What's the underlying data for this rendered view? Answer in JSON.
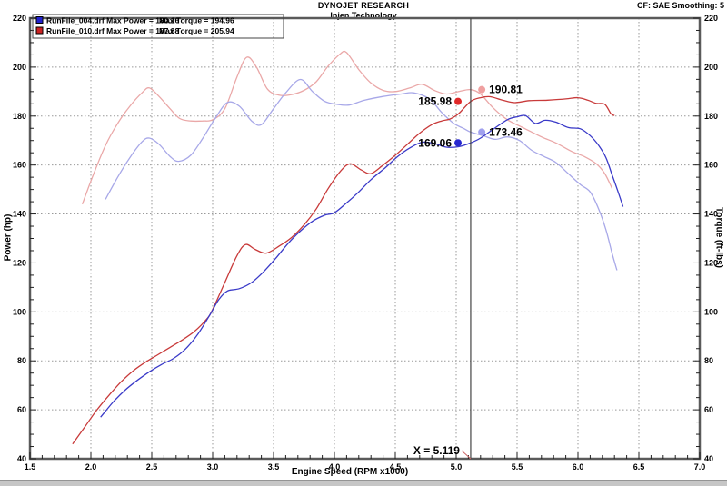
{
  "header": {
    "title": "DYNOJET RESEARCH",
    "subtitle": "Injen Technology",
    "correction": "CF: SAE  Smoothing: 5"
  },
  "legend": {
    "position": "top-left",
    "rows": [
      {
        "file": "RunFile_004.drf",
        "max_power": "Max Power = 180.16",
        "max_torque": "Max Torque = 194.96",
        "swatch_color": "#2222cc"
      },
      {
        "file": "RunFile_010.drf",
        "max_power": "Max Power = 187.88",
        "max_torque": "Max Torque = 205.94",
        "swatch_color": "#cc2222"
      }
    ]
  },
  "chart_data": {
    "type": "line",
    "title": "DYNOJET RESEARCH",
    "subtitle": "Injen Technology",
    "xlabel": "Engine Speed (RPM x1000)",
    "ylabel_left": "Power (hp)",
    "ylabel_right": "Torque (ft-lbs)",
    "x_range": [
      1.5,
      7.0
    ],
    "y_range": [
      40,
      220
    ],
    "x_major_step": 0.5,
    "x_minor_step": 0.1,
    "y_major_step": 20,
    "y_minor_step": 5,
    "grid_style": "dotted",
    "legend_position": "top-left",
    "cursor": {
      "x": 5.119,
      "label": "X = 5.119"
    },
    "series": [
      {
        "name": "RunFile_010.drf Torque",
        "unit": "ft-lbs",
        "max": 205.94,
        "color": "#eaa8a8",
        "points": [
          [
            1.93,
            144
          ],
          [
            2.02,
            156
          ],
          [
            2.12,
            168
          ],
          [
            2.22,
            177
          ],
          [
            2.32,
            184
          ],
          [
            2.42,
            189.5
          ],
          [
            2.48,
            191.5
          ],
          [
            2.56,
            188
          ],
          [
            2.65,
            183
          ],
          [
            2.73,
            179
          ],
          [
            2.82,
            178
          ],
          [
            2.92,
            178
          ],
          [
            3.0,
            178.5
          ],
          [
            3.1,
            183
          ],
          [
            3.2,
            196
          ],
          [
            3.28,
            204
          ],
          [
            3.36,
            200
          ],
          [
            3.45,
            191
          ],
          [
            3.55,
            188.5
          ],
          [
            3.65,
            188.8
          ],
          [
            3.75,
            190.5
          ],
          [
            3.85,
            194
          ],
          [
            3.95,
            200.5
          ],
          [
            4.05,
            205.5
          ],
          [
            4.1,
            205.94
          ],
          [
            4.2,
            199
          ],
          [
            4.3,
            193.5
          ],
          [
            4.4,
            190.5
          ],
          [
            4.5,
            190
          ],
          [
            4.62,
            191.5
          ],
          [
            4.72,
            193
          ],
          [
            4.82,
            190.5
          ],
          [
            4.92,
            189
          ],
          [
            5.02,
            190
          ],
          [
            5.119,
            190.81
          ],
          [
            5.2,
            189
          ],
          [
            5.3,
            183.5
          ],
          [
            5.42,
            178.5
          ],
          [
            5.56,
            175
          ],
          [
            5.7,
            171.5
          ],
          [
            5.82,
            169
          ],
          [
            5.95,
            165.5
          ],
          [
            6.05,
            163.5
          ],
          [
            6.15,
            160.5
          ],
          [
            6.22,
            156.5
          ],
          [
            6.28,
            150.5
          ]
        ]
      },
      {
        "name": "RunFile_004.drf Torque",
        "unit": "ft-lbs",
        "max": 194.96,
        "color": "#a8a8e8",
        "points": [
          [
            2.12,
            146
          ],
          [
            2.22,
            155
          ],
          [
            2.32,
            163
          ],
          [
            2.42,
            169.5
          ],
          [
            2.48,
            171
          ],
          [
            2.56,
            168.5
          ],
          [
            2.65,
            163.5
          ],
          [
            2.72,
            161.5
          ],
          [
            2.82,
            164
          ],
          [
            2.92,
            171
          ],
          [
            3.02,
            179
          ],
          [
            3.12,
            185.5
          ],
          [
            3.22,
            184
          ],
          [
            3.32,
            178
          ],
          [
            3.4,
            176.5
          ],
          [
            3.5,
            183
          ],
          [
            3.6,
            189.5
          ],
          [
            3.72,
            194.96
          ],
          [
            3.82,
            190
          ],
          [
            3.92,
            186
          ],
          [
            4.02,
            184.8
          ],
          [
            4.12,
            184.5
          ],
          [
            4.25,
            186.5
          ],
          [
            4.4,
            188
          ],
          [
            4.55,
            189
          ],
          [
            4.65,
            189.5
          ],
          [
            4.78,
            187
          ],
          [
            4.88,
            181.5
          ],
          [
            4.98,
            177
          ],
          [
            5.06,
            175
          ],
          [
            5.119,
            173.46
          ],
          [
            5.22,
            172
          ],
          [
            5.32,
            170.5
          ],
          [
            5.42,
            171.5
          ],
          [
            5.52,
            170
          ],
          [
            5.62,
            166
          ],
          [
            5.72,
            163.5
          ],
          [
            5.82,
            161
          ],
          [
            5.92,
            156.5
          ],
          [
            6.02,
            152
          ],
          [
            6.1,
            149
          ],
          [
            6.17,
            142
          ],
          [
            6.23,
            133.5
          ],
          [
            6.28,
            124
          ],
          [
            6.32,
            117
          ]
        ]
      },
      {
        "name": "RunFile_010.drf Power",
        "unit": "hp",
        "max": 187.88,
        "color": "#c83a3a",
        "points": [
          [
            1.85,
            46
          ],
          [
            1.95,
            53
          ],
          [
            2.05,
            60
          ],
          [
            2.15,
            66
          ],
          [
            2.25,
            71.5
          ],
          [
            2.35,
            76
          ],
          [
            2.45,
            79.5
          ],
          [
            2.55,
            82.5
          ],
          [
            2.65,
            85.5
          ],
          [
            2.75,
            88.5
          ],
          [
            2.85,
            92
          ],
          [
            2.95,
            97
          ],
          [
            3.0,
            101
          ],
          [
            3.1,
            112
          ],
          [
            3.2,
            123
          ],
          [
            3.27,
            127.5
          ],
          [
            3.35,
            125.5
          ],
          [
            3.44,
            124
          ],
          [
            3.55,
            127
          ],
          [
            3.65,
            130.5
          ],
          [
            3.75,
            135.5
          ],
          [
            3.85,
            142
          ],
          [
            3.95,
            150.5
          ],
          [
            4.05,
            157.5
          ],
          [
            4.13,
            160.5
          ],
          [
            4.22,
            158
          ],
          [
            4.3,
            156.5
          ],
          [
            4.4,
            160
          ],
          [
            4.5,
            164
          ],
          [
            4.6,
            168.5
          ],
          [
            4.7,
            173
          ],
          [
            4.8,
            176.5
          ],
          [
            4.88,
            178
          ],
          [
            4.95,
            178.8
          ],
          [
            5.02,
            181
          ],
          [
            5.119,
            185.98
          ],
          [
            5.2,
            187.5
          ],
          [
            5.28,
            187.88
          ],
          [
            5.38,
            186.5
          ],
          [
            5.48,
            185.5
          ],
          [
            5.6,
            186.3
          ],
          [
            5.75,
            186.5
          ],
          [
            5.9,
            187
          ],
          [
            6.0,
            187.5
          ],
          [
            6.08,
            186.5
          ],
          [
            6.15,
            185.2
          ],
          [
            6.22,
            184.8
          ],
          [
            6.27,
            181
          ],
          [
            6.3,
            180.2
          ]
        ]
      },
      {
        "name": "RunFile_004.drf Power",
        "unit": "hp",
        "max": 180.16,
        "color": "#3a3ac8",
        "points": [
          [
            2.08,
            57
          ],
          [
            2.18,
            63
          ],
          [
            2.28,
            68
          ],
          [
            2.38,
            72
          ],
          [
            2.48,
            75.5
          ],
          [
            2.58,
            78.5
          ],
          [
            2.68,
            81
          ],
          [
            2.78,
            85
          ],
          [
            2.88,
            91
          ],
          [
            2.98,
            99
          ],
          [
            3.05,
            105
          ],
          [
            3.12,
            108.5
          ],
          [
            3.22,
            109.5
          ],
          [
            3.32,
            112
          ],
          [
            3.42,
            116.5
          ],
          [
            3.52,
            122
          ],
          [
            3.62,
            128
          ],
          [
            3.72,
            133
          ],
          [
            3.82,
            137
          ],
          [
            3.92,
            139.5
          ],
          [
            4.0,
            140.5
          ],
          [
            4.1,
            144.5
          ],
          [
            4.2,
            149
          ],
          [
            4.3,
            154
          ],
          [
            4.42,
            159
          ],
          [
            4.52,
            163.5
          ],
          [
            4.62,
            167
          ],
          [
            4.72,
            169.3
          ],
          [
            4.82,
            168.8
          ],
          [
            4.92,
            167.3
          ],
          [
            5.02,
            167.5
          ],
          [
            5.119,
            169.06
          ],
          [
            5.2,
            171
          ],
          [
            5.3,
            174.5
          ],
          [
            5.42,
            178.5
          ],
          [
            5.5,
            179.7
          ],
          [
            5.57,
            180.16
          ],
          [
            5.65,
            177
          ],
          [
            5.73,
            178.3
          ],
          [
            5.82,
            177.5
          ],
          [
            5.92,
            175.3
          ],
          [
            6.02,
            174.8
          ],
          [
            6.1,
            172
          ],
          [
            6.17,
            168
          ],
          [
            6.23,
            163
          ],
          [
            6.28,
            156
          ],
          [
            6.33,
            149
          ],
          [
            6.37,
            143
          ]
        ]
      }
    ],
    "callouts": [
      {
        "value": "185.98",
        "dot_color": "#e02828",
        "dot_x": 5.015,
        "dot_y": 185.98,
        "text_side": "left"
      },
      {
        "value": "190.81",
        "dot_color": "#efa0a0",
        "dot_x": 5.21,
        "dot_y": 190.81,
        "text_side": "right"
      },
      {
        "value": "169.06",
        "dot_color": "#2828d0",
        "dot_x": 5.015,
        "dot_y": 169.06,
        "text_side": "left"
      },
      {
        "value": "173.46",
        "dot_color": "#a0a0ee",
        "dot_x": 5.21,
        "dot_y": 173.46,
        "text_side": "right"
      }
    ]
  }
}
